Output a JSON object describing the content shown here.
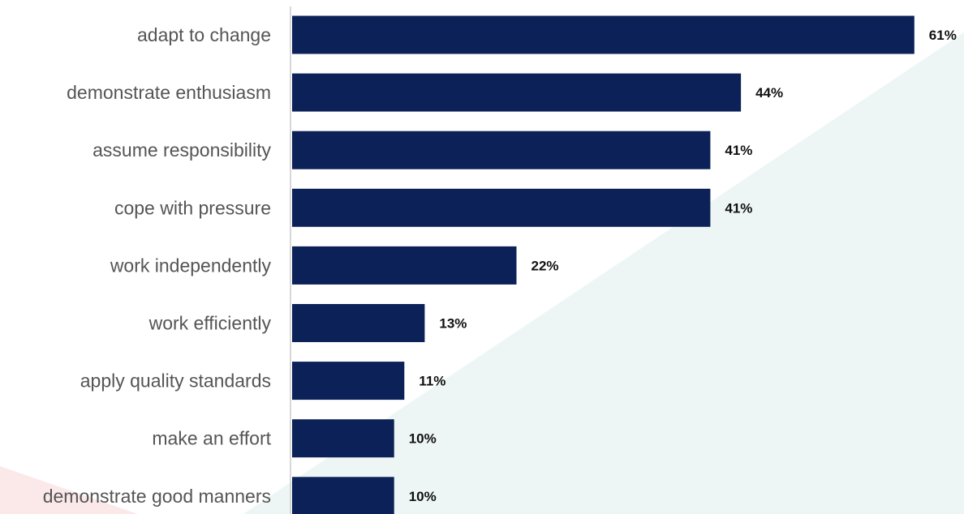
{
  "chart_data": {
    "type": "bar",
    "orientation": "horizontal",
    "categories": [
      "adapt to change",
      "demonstrate enthusiasm",
      "assume responsibility",
      "cope with pressure",
      "work independently",
      "work efficiently",
      "apply quality standards",
      "make an effort",
      "demonstrate good manners"
    ],
    "values": [
      61,
      44,
      41,
      41,
      22,
      13,
      11,
      10,
      10
    ],
    "value_labels": [
      "61%",
      "44%",
      "41%",
      "41%",
      "22%",
      "13%",
      "11%",
      "10%",
      "10%"
    ],
    "unit": "%",
    "xlim": [
      0,
      61
    ],
    "grid": false,
    "legend": "none",
    "title": "",
    "xlabel": "",
    "ylabel": ""
  },
  "colors": {
    "bar": "#0b2157",
    "axis": "#cccccc",
    "category_text": "#555555",
    "value_text": "#111111",
    "bg_teal": "#eef6f5",
    "bg_pink": "#fbe9ea"
  }
}
